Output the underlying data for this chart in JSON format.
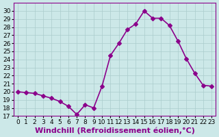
{
  "x": [
    0,
    1,
    2,
    3,
    4,
    5,
    6,
    7,
    8,
    9,
    10,
    11,
    12,
    13,
    14,
    15,
    16,
    17,
    18,
    19,
    20,
    21,
    22,
    23
  ],
  "y": [
    20.0,
    19.9,
    19.8,
    19.5,
    19.2,
    18.8,
    18.2,
    17.2,
    18.4,
    18.0,
    20.7,
    24.5,
    26.0,
    27.7,
    28.4,
    30.0,
    29.1,
    29.1,
    28.2,
    26.3,
    24.1,
    22.3,
    20.8,
    20.7
  ],
  "line_color": "#8b008b",
  "marker": "D",
  "marker_size": 3,
  "background_color": "#cce8e8",
  "grid_color": "#aacccc",
  "xlabel": "Windchill (Refroidissement éolien,°C)",
  "xlabel_fontsize": 8,
  "xlim": [
    -0.5,
    23.5
  ],
  "ylim": [
    17,
    31
  ],
  "yticks": [
    17,
    18,
    19,
    20,
    21,
    22,
    23,
    24,
    25,
    26,
    27,
    28,
    29,
    30
  ],
  "xticks": [
    0,
    1,
    2,
    3,
    4,
    5,
    6,
    7,
    8,
    9,
    10,
    11,
    12,
    13,
    14,
    15,
    16,
    17,
    18,
    19,
    20,
    21,
    22,
    23
  ],
  "tick_fontsize": 6.5,
  "line_width": 1.2
}
